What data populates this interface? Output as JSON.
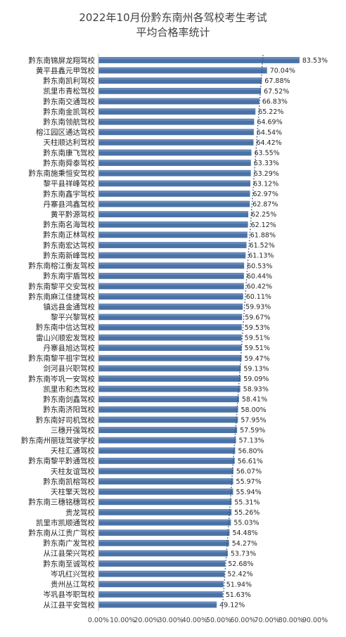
{
  "chart_data": {
    "type": "bar",
    "orientation": "horizontal",
    "title_lines": [
      "2022年10月份黔东南州各驾校考生考试",
      "平均合格率统计"
    ],
    "categories": [
      "黔东南锦屏龙翔驾校",
      "黄平县鑫元甲驾校",
      "黔东南凯利驾校",
      "凯里市青松驾校",
      "黔东南交通驾校",
      "黔东南金凯驾校",
      "黔东南领航驾校",
      "榕江园区通达驾校",
      "天柱顺达利驾校",
      "黔东南康飞驾校",
      "黔东南舜泰驾校",
      "黔东南施秉恒安驾校",
      "黎平县祥峰驾校",
      "黔东南鑫宇驾校",
      "丹寨县鸿鑫驾校",
      "黄平黔源驾校",
      "黔东南名海驾校",
      "黔东南正林驾校",
      "黔东南宏达驾校",
      "黔东南新峰驾校",
      "黔东南榕江衡友驾校",
      "黔东南宇盾驾校",
      "黔东南黎平交安驾校",
      "黔东南麻江佳捷驾校",
      "镇远县金通驾校",
      "黎平兴黎驾校",
      "黔东南中信达驾校",
      "雷山兴顺宏发驾校",
      "丹寨县旭达驾校",
      "黔东南黎平祖宇驾校",
      "剑河县兴职驾校",
      "黔东南岑巩一安驾校",
      "凯里市和杰驾校",
      "黔东南剑鑫驾校",
      "黔东南济阳驾校",
      "黔东南好司机驾校",
      "三穗开强驾校",
      "黔东南州丽珑驾驶学校",
      "天柱汇通驾校",
      "黔东南黎平黔通驾校",
      "天柱友谊驾校",
      "黔东南凯榕驾校",
      "天柱擎天驾校",
      "黔东南三穗铭穗驾校",
      "贵龙驾校",
      "凯里市凯顺通驾校",
      "黔东南从江贵广驾校",
      "黔东南广发驾校",
      "从江县荣兴驾校",
      "黔东南至诚驾校",
      "岑巩红兴驾校",
      "贵州丛江驾校",
      "岑巩县岑职驾校",
      "从江县平安驾校"
    ],
    "values": [
      83.53,
      70.04,
      67.88,
      67.52,
      66.83,
      65.22,
      64.69,
      64.54,
      64.42,
      63.55,
      63.33,
      63.29,
      63.12,
      62.97,
      62.87,
      62.25,
      62.12,
      61.88,
      61.52,
      61.13,
      60.53,
      60.44,
      60.42,
      60.11,
      59.93,
      59.67,
      59.53,
      59.51,
      59.51,
      59.47,
      59.13,
      59.09,
      58.93,
      58.41,
      58.0,
      57.95,
      57.59,
      57.13,
      56.8,
      56.61,
      56.07,
      55.97,
      55.94,
      55.31,
      55.26,
      55.03,
      54.48,
      54.27,
      53.73,
      52.68,
      52.42,
      51.94,
      51.63,
      49.12
    ],
    "value_labels": [
      "83.53%",
      "70.04%",
      "67.88%",
      "67.52%",
      "66.83%",
      "65.22%",
      "64.69%",
      "64.54%",
      "64.42%",
      "63.55%",
      "63.33%",
      "63.29%",
      "63.12%",
      "62.97%",
      "62.87%",
      "62.25%",
      "62.12%",
      "61.88%",
      "61.52%",
      "61.13%",
      "60.53%",
      "60.44%",
      "60.42%",
      "60.11%",
      "59.93%",
      "59.67%",
      "59.53%",
      "59.51%",
      "59.51%",
      "59.47%",
      "59.13%",
      "59.09%",
      "58.93%",
      "58.41%",
      "58.00%",
      "57.95%",
      "57.59%",
      "57.13%",
      "56.80%",
      "56.61%",
      "56.07%",
      "55.97%",
      "55.94%",
      "55.31%",
      "55.26%",
      "55.03%",
      "54.48%",
      "54.27%",
      "53.73%",
      "52.68%",
      "52.42%",
      "51.94%",
      "51.63%",
      "49.12%"
    ],
    "x_ticks": [
      0,
      10,
      20,
      30,
      40,
      50,
      60,
      70,
      80,
      90
    ],
    "x_tick_labels": [
      "0.00%",
      "10.00%",
      "20.00%",
      "30.00%",
      "40.00%",
      "50.00%",
      "60.00%",
      "70.00%",
      "80.00%",
      "90.00%"
    ],
    "xlim": [
      0,
      90
    ],
    "xlabel": "",
    "ylabel": "",
    "grid": false,
    "legend": "none",
    "trendline": "dotted",
    "bar_color": "#4a72a6",
    "bar_highlight_color": "#7b9bc6",
    "trend_color": "#2f4f7a"
  }
}
